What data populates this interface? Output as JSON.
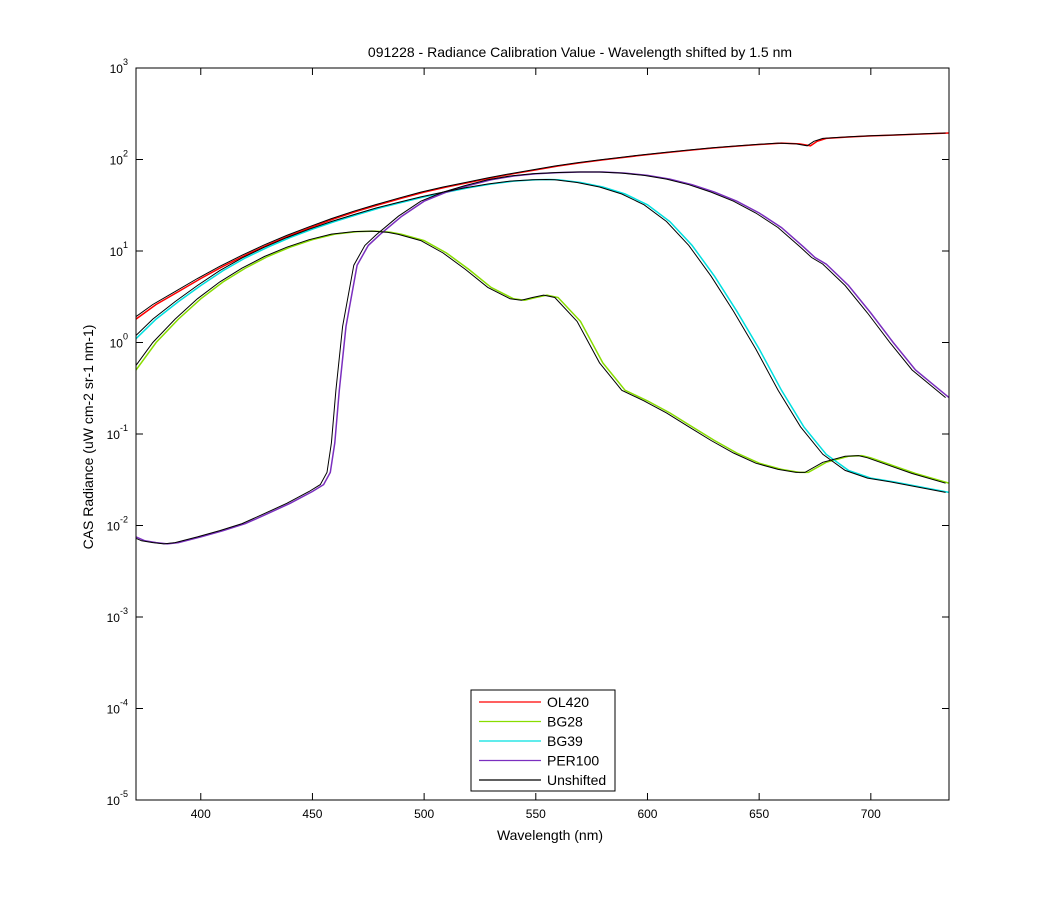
{
  "chart_data": {
    "type": "line",
    "title": "091228 - Radiance Calibration Value  - Wavelength shifted by 1.5 nm",
    "xlabel": "Wavelength (nm)",
    "ylabel": "CAS Radiance (uW cm-2 sr-1 nm-1)",
    "xlim": [
      371,
      735
    ],
    "ylim": [
      1e-05,
      1000
    ],
    "y_scale": "log",
    "x_ticks": [
      400,
      450,
      500,
      550,
      600,
      650,
      700
    ],
    "x_tick_labels": [
      "400",
      "450",
      "500",
      "550",
      "600",
      "650",
      "700"
    ],
    "y_ticks": [
      {
        "value": 1e-05,
        "base": "10",
        "exp": "-5"
      },
      {
        "value": 0.0001,
        "base": "10",
        "exp": "-4"
      },
      {
        "value": 0.001,
        "base": "10",
        "exp": "-3"
      },
      {
        "value": 0.01,
        "base": "10",
        "exp": "-2"
      },
      {
        "value": 0.1,
        "base": "10",
        "exp": "-1"
      },
      {
        "value": 1,
        "base": "10",
        "exp": "0"
      },
      {
        "value": 10,
        "base": "10",
        "exp": "1"
      },
      {
        "value": 100,
        "base": "10",
        "exp": "2"
      },
      {
        "value": 1000,
        "base": "10",
        "exp": "3"
      }
    ],
    "grid": false,
    "legend_position": "bottom-center",
    "series": [
      {
        "name": "OL420",
        "color": "#ff0000",
        "x": [
          371,
          380,
          390,
          400,
          410,
          420,
          430,
          440,
          450,
          460,
          470,
          480,
          490,
          500,
          510,
          520,
          530,
          540,
          550,
          560,
          570,
          580,
          590,
          600,
          610,
          620,
          630,
          640,
          650,
          660,
          668,
          673,
          676,
          680,
          690,
          700,
          710,
          720,
          735
        ],
        "y": [
          1.8,
          2.6,
          3.6,
          5.0,
          6.8,
          9.0,
          11.7,
          14.8,
          18.4,
          22.6,
          27.2,
          32.2,
          37.8,
          44,
          50,
          56,
          63,
          70,
          77,
          85,
          92,
          99,
          106,
          113,
          120,
          127,
          134,
          140,
          146,
          151,
          148,
          141,
          158,
          170,
          176,
          181,
          185,
          189,
          195
        ]
      },
      {
        "name": "BG28",
        "color": "#88dd00",
        "x": [
          371,
          380,
          390,
          400,
          410,
          420,
          430,
          440,
          450,
          460,
          470,
          478,
          485,
          490,
          500,
          510,
          520,
          530,
          540,
          545,
          550,
          555,
          560,
          570,
          580,
          590,
          600,
          610,
          620,
          630,
          640,
          650,
          660,
          668,
          672,
          680,
          690,
          696,
          700,
          710,
          720,
          735
        ],
        "y": [
          0.5,
          1.0,
          1.8,
          3.0,
          4.6,
          6.5,
          8.7,
          11.0,
          13.3,
          15.3,
          16.3,
          16.5,
          16,
          15.2,
          13,
          9.5,
          6.3,
          4.0,
          3.0,
          2.9,
          3.1,
          3.3,
          3.1,
          1.7,
          0.6,
          0.3,
          0.23,
          0.17,
          0.12,
          0.085,
          0.062,
          0.048,
          0.041,
          0.038,
          0.038,
          0.049,
          0.057,
          0.058,
          0.055,
          0.045,
          0.037,
          0.029
        ]
      },
      {
        "name": "BG39",
        "color": "#00e0e0",
        "x": [
          371,
          380,
          390,
          400,
          410,
          420,
          430,
          440,
          450,
          460,
          470,
          480,
          490,
          500,
          510,
          520,
          530,
          540,
          550,
          556,
          560,
          570,
          580,
          590,
          600,
          610,
          620,
          630,
          640,
          650,
          660,
          670,
          680,
          690,
          700,
          710,
          720,
          735
        ],
        "y": [
          1.1,
          1.8,
          2.8,
          4.2,
          6.1,
          8.4,
          11.0,
          14.0,
          17.3,
          21,
          25,
          29.5,
          34,
          39,
          44,
          49,
          54,
          58,
          60,
          60.5,
          60,
          56,
          50,
          42,
          32,
          21,
          11.5,
          5.3,
          2.2,
          0.85,
          0.3,
          0.12,
          0.06,
          0.04,
          0.033,
          0.03,
          0.027,
          0.023
        ]
      },
      {
        "name": "PER100",
        "color": "#7b2fbf",
        "x": [
          371,
          375,
          380,
          385,
          390,
          400,
          410,
          420,
          430,
          440,
          450,
          455,
          458,
          460,
          462,
          465,
          470,
          475,
          480,
          490,
          500,
          510,
          520,
          530,
          540,
          550,
          560,
          570,
          580,
          590,
          600,
          610,
          620,
          630,
          640,
          650,
          660,
          670,
          675,
          680,
          690,
          700,
          710,
          720,
          735
        ],
        "y": [
          0.0075,
          0.0068,
          0.0065,
          0.0063,
          0.0065,
          0.0075,
          0.0088,
          0.0105,
          0.0135,
          0.0175,
          0.0235,
          0.028,
          0.038,
          0.08,
          0.3,
          1.5,
          7,
          11.5,
          15,
          24,
          35,
          44,
          52,
          60,
          66,
          70,
          72,
          73,
          73,
          71,
          67,
          61,
          53,
          44,
          35,
          26,
          18,
          11,
          8.5,
          7.2,
          4.2,
          2.1,
          1.0,
          0.5,
          0.25
        ]
      },
      {
        "name": "Unshifted",
        "color": "#000000",
        "dx": -1.5,
        "x": [],
        "y": []
      }
    ]
  }
}
